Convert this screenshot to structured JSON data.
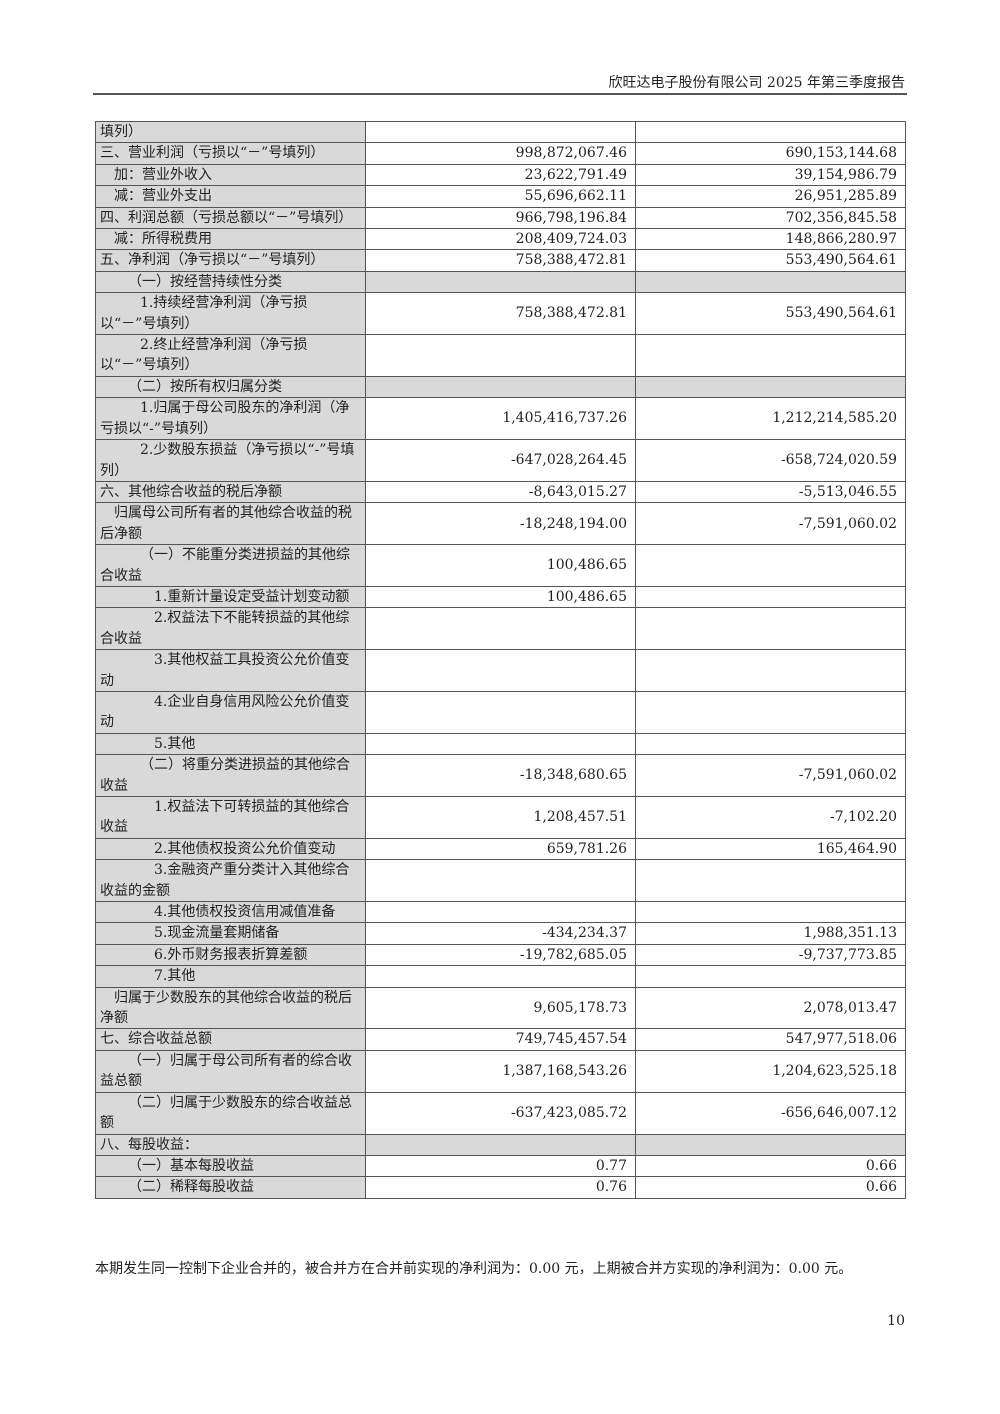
{
  "header": {
    "title": "欣旺达电子股份有限公司 2025 年第三季度报告"
  },
  "rows": [
    {
      "label": "填列）",
      "cur": "",
      "prev": ""
    },
    {
      "label": "三、营业利润（亏损以“－”号填列）",
      "cur": "998,872,067.46",
      "prev": "690,153,144.68"
    },
    {
      "label": "加：营业外收入",
      "cur": "23,622,791.49",
      "prev": "39,154,986.79"
    },
    {
      "label": "减：营业外支出",
      "cur": "55,696,662.11",
      "prev": "26,951,285.89"
    },
    {
      "label": "四、利润总额（亏损总额以“－”号填列）",
      "cur": "966,798,196.84",
      "prev": "702,356,845.58"
    },
    {
      "label": "减：所得税费用",
      "cur": "208,409,724.03",
      "prev": "148,866,280.97"
    },
    {
      "label": "五、净利润（净亏损以“－”号填列）",
      "cur": "758,388,472.81",
      "prev": "553,490,564.61"
    },
    {
      "label": "（一）按经营持续性分类",
      "cur": "",
      "prev": ""
    },
    {
      "label": "1.持续经营净利润（净亏损以“－”号填列）",
      "cur": "758,388,472.81",
      "prev": "553,490,564.61"
    },
    {
      "label": "2.终止经营净利润（净亏损以“－”号填列）",
      "cur": "",
      "prev": ""
    },
    {
      "label": "（二）按所有权归属分类",
      "cur": "",
      "prev": ""
    },
    {
      "label": "1.归属于母公司股东的净利润（净亏损以“-”号填列）",
      "cur": "1,405,416,737.26",
      "prev": "1,212,214,585.20"
    },
    {
      "label": "2.少数股东损益（净亏损以“-”号填列）",
      "cur": "-647,028,264.45",
      "prev": "-658,724,020.59"
    },
    {
      "label": "六、其他综合收益的税后净额",
      "cur": "-8,643,015.27",
      "prev": "-5,513,046.55"
    },
    {
      "label": "归属母公司所有者的其他综合收益的税后净额",
      "cur": "-18,248,194.00",
      "prev": "-7,591,060.02"
    },
    {
      "label": "（一）不能重分类进损益的其他综合收益",
      "cur": "100,486.65",
      "prev": ""
    },
    {
      "label": "1.重新计量设定受益计划变动额",
      "cur": "100,486.65",
      "prev": ""
    },
    {
      "label": "2.权益法下不能转损益的其他综合收益",
      "cur": "",
      "prev": ""
    },
    {
      "label": "3.其他权益工具投资公允价值变动",
      "cur": "",
      "prev": ""
    },
    {
      "label": "4.企业自身信用风险公允价值变动",
      "cur": "",
      "prev": ""
    },
    {
      "label": "5.其他",
      "cur": "",
      "prev": ""
    },
    {
      "label": "（二）将重分类进损益的其他综合收益",
      "cur": "-18,348,680.65",
      "prev": "-7,591,060.02"
    },
    {
      "label": "1.权益法下可转损益的其他综合收益",
      "cur": "1,208,457.51",
      "prev": "-7,102.20"
    },
    {
      "label": "2.其他债权投资公允价值变动",
      "cur": "659,781.26",
      "prev": "165,464.90"
    },
    {
      "label": "3.金融资产重分类计入其他综合收益的金额",
      "cur": "",
      "prev": ""
    },
    {
      "label": "4.其他债权投资信用减值准备",
      "cur": "",
      "prev": ""
    },
    {
      "label": "5.现金流量套期储备",
      "cur": "-434,234.37",
      "prev": "1,988,351.13"
    },
    {
      "label": "6.外币财务报表折算差额",
      "cur": "-19,782,685.05",
      "prev": "-9,737,773.85"
    },
    {
      "label": "7.其他",
      "cur": "",
      "prev": ""
    },
    {
      "label": "归属于少数股东的其他综合收益的税后净额",
      "cur": "9,605,178.73",
      "prev": "2,078,013.47"
    },
    {
      "label": "七、综合收益总额",
      "cur": "749,745,457.54",
      "prev": "547,977,518.06"
    },
    {
      "label": "（一）归属于母公司所有者的综合收益总额",
      "cur": "1,387,168,543.26",
      "prev": "1,204,623,525.18"
    },
    {
      "label": "（二）归属于少数股东的综合收益总额",
      "cur": "-637,423,085.72",
      "prev": "-656,646,007.12"
    },
    {
      "label": "八、每股收益：",
      "cur": "",
      "prev": ""
    },
    {
      "label": "（一）基本每股收益",
      "cur": "0.77",
      "prev": "0.66"
    },
    {
      "label": "（二）稀释每股收益",
      "cur": "0.76",
      "prev": "0.66"
    }
  ],
  "footnote": "本期发生同一控制下企业合并的，被合并方在合并前实现的净利润为：0.00 元，上期被合并方实现的净利润为：0.00 元。",
  "page_number": "10"
}
